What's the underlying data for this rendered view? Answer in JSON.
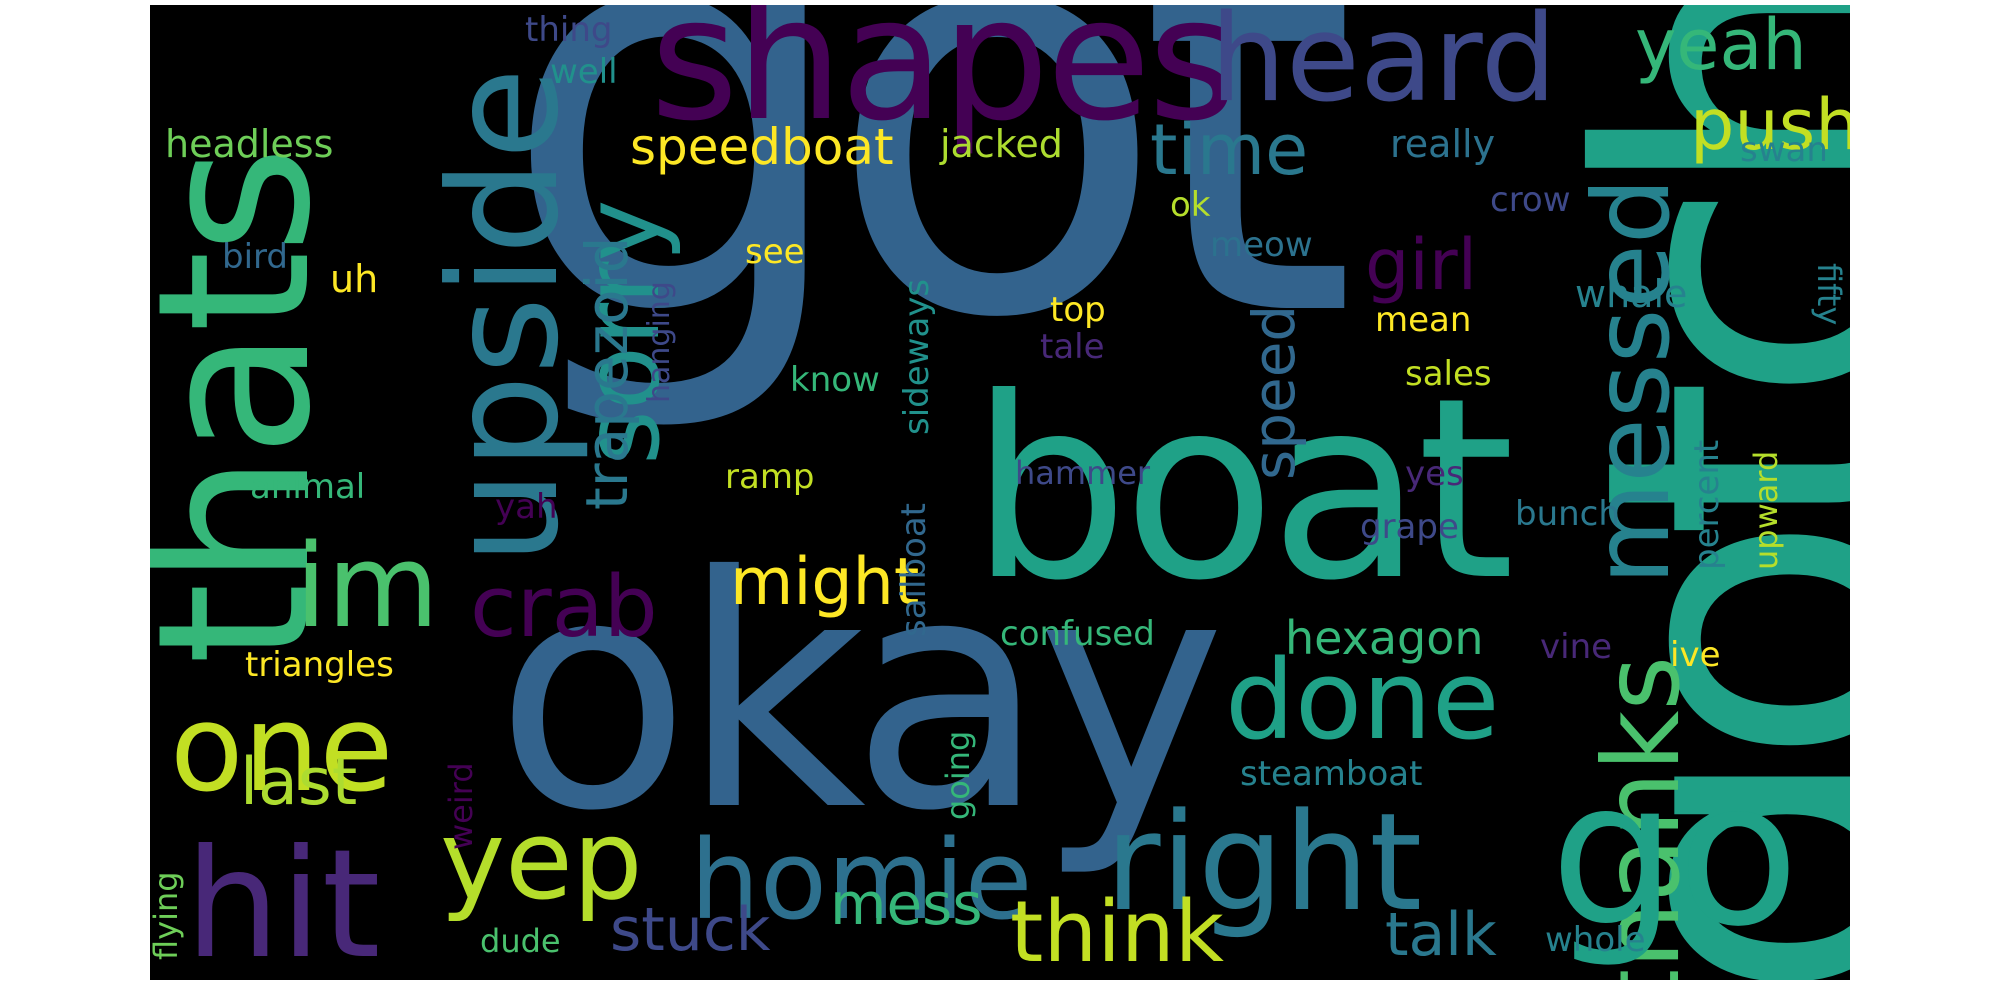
{
  "words": {
    "got": "got",
    "gotcha": "gotcha",
    "okay": "okay",
    "boat": "boat",
    "go": "go",
    "thats": "thats",
    "shapes": "shapes",
    "upside": "upside",
    "heard": "heard",
    "sorry": "sorry",
    "messed": "messed",
    "thanks": "thanks",
    "right": "right",
    "homie": "homie",
    "hit": "hit",
    "one": "one",
    "im": "im",
    "crab": "crab",
    "yep": "yep",
    "done": "done",
    "think": "think",
    "yeah": "yeah",
    "push": "push",
    "time": "time",
    "girl": "girl",
    "might": "might",
    "speedboat": "speedboat",
    "trapezoid": "trapezoid",
    "speed": "speed",
    "last": "last",
    "stuck": "stuck",
    "mess": "mess",
    "talk": "talk",
    "hexagon": "hexagon",
    "thing": "thing",
    "well": "well",
    "headless": "headless",
    "jacked": "jacked",
    "really": "really",
    "swan": "swan",
    "crow": "crow",
    "ok": "ok",
    "meow": "meow",
    "bird": "bird",
    "see": "see",
    "uh": "uh",
    "top": "top",
    "mean": "mean",
    "whale": "whale",
    "tale": "tale",
    "sales": "sales",
    "know": "know",
    "hanging": "hanging",
    "sideways": "sideways",
    "fifty": "fifty",
    "percent": "percent",
    "upward": "upward",
    "animal": "animal",
    "ramp": "ramp",
    "hammer": "hammer",
    "yes": "yes",
    "yah": "yah",
    "grape": "grape",
    "bunch": "bunch",
    "sailboat": "sailboat",
    "confused": "confused",
    "triangles": "triangles",
    "vine": "vine",
    "ive": "ive",
    "steamboat": "steamboat",
    "going": "going",
    "weird": "weird",
    "flying": "flying",
    "dude": "dude",
    "whole": "whole"
  },
  "colors": {
    "background": "#000000",
    "palette": "viridis"
  }
}
